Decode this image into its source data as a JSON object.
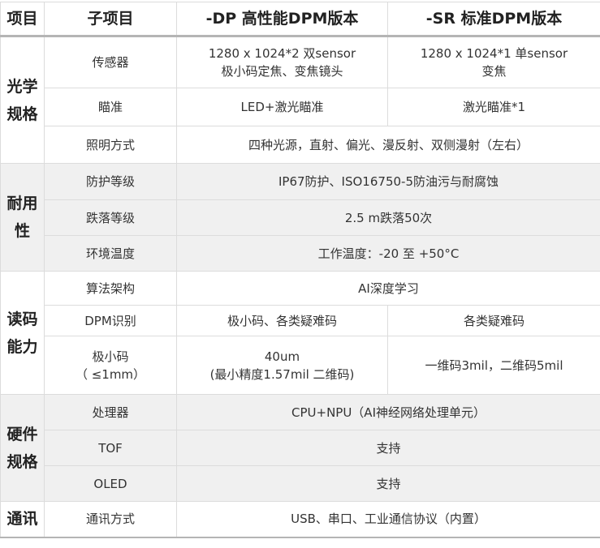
{
  "header": [
    "项目",
    "子项目",
    "-DP 高性能DPM版本",
    "-SR  标准DPM版本"
  ],
  "groups": [
    {
      "name": [
        "光学",
        "规格"
      ],
      "rows": [
        {
          "sub": "传感器",
          "dp": [
            "1280 x 1024*2 双sensor",
            "极小码定焦、变焦镜头"
          ],
          "sr": [
            "1280 x 1024*1 单sensor",
            "变焦"
          ]
        },
        {
          "sub": "瞄准",
          "dp": "LED+激光瞄准",
          "sr": "激光瞄准*1"
        },
        {
          "sub": "照明方式",
          "both": "四种光源，直射、偏光、漫反射、双侧漫射（左右）"
        }
      ]
    },
    {
      "name": [
        "耐用性"
      ],
      "rows": [
        {
          "sub": "防护等级",
          "both": "IP67防护、ISO16750-5防油污与耐腐蚀"
        },
        {
          "sub": "跌落等级",
          "both": "2.5 m跌落50次"
        },
        {
          "sub": "环境温度",
          "both": "工作温度：-20 至 +50°C"
        }
      ]
    },
    {
      "name": [
        "读码",
        "能力"
      ],
      "rows": [
        {
          "sub": "算法架构",
          "both": "AI深度学习"
        },
        {
          "sub": "DPM识别",
          "dp": "极小码、各类疑难码",
          "sr": "各类疑难码"
        },
        {
          "sub": [
            "极小码",
            "（ ≤1mm）"
          ],
          "dp": [
            "40um",
            "(最小精度1.57mil 二维码)"
          ],
          "sr": "一维码3mil，二维码5mil"
        }
      ]
    },
    {
      "name": [
        "硬件",
        "规格"
      ],
      "rows": [
        {
          "sub": "处理器",
          "both": "CPU+NPU（AI神经网络处理单元）"
        },
        {
          "sub": "TOF",
          "both": "支持"
        },
        {
          "sub": "OLED",
          "both": "支持"
        }
      ]
    },
    {
      "name": [
        "通讯"
      ],
      "rows": [
        {
          "sub": "通讯方式",
          "both": "USB、串口、工业通信协议（内置）"
        }
      ]
    }
  ]
}
